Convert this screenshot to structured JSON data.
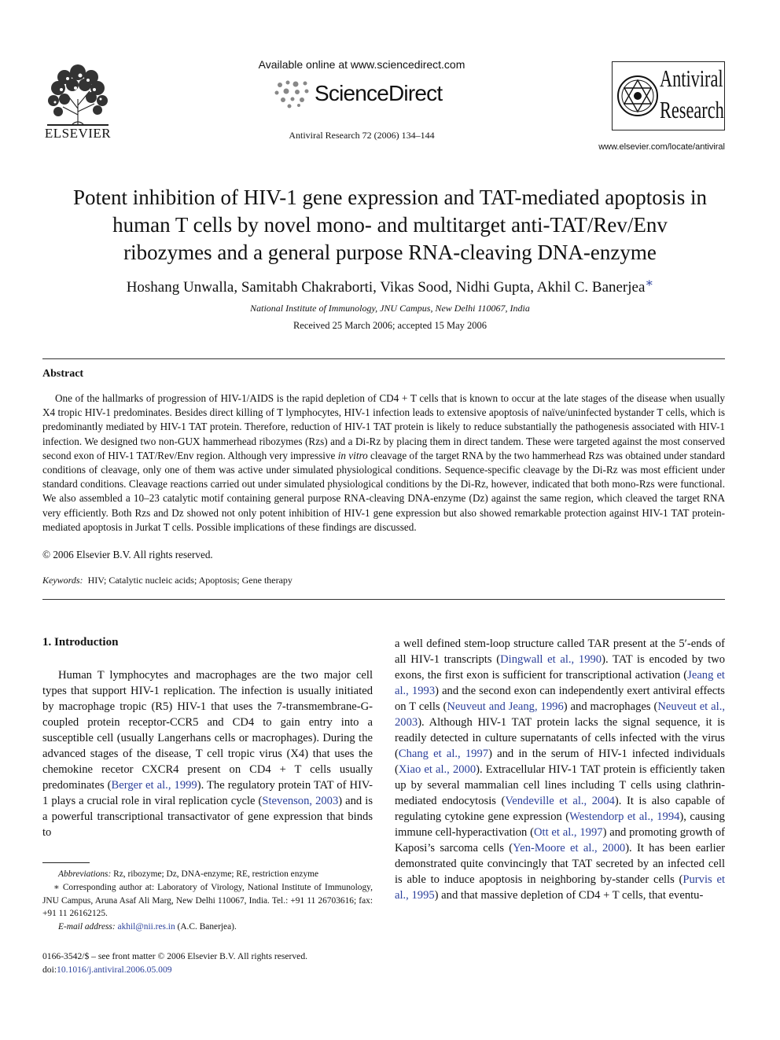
{
  "header": {
    "publisher": "ELSEVIER",
    "available_online": "Available online at www.sciencedirect.com",
    "sciencedirect": "ScienceDirect",
    "journal_ref": "Antiviral Research 72 (2006) 134–144",
    "journal_name_line1": "Antiviral",
    "journal_name_line2": "Research",
    "journal_url": "www.elsevier.com/locate/antiviral"
  },
  "article": {
    "title_lines": [
      "Potent inhibition of HIV-1 gene expression and TAT-mediated apoptosis in",
      "human T cells by novel mono- and multitarget anti-TAT/Rev/Env",
      "ribozymes and a general purpose RNA-cleaving DNA-enzyme"
    ],
    "authors": "Hoshang Unwalla, Samitabh Chakraborti, Vikas Sood, Nidhi Gupta, Akhil C. Banerjea",
    "author_mark": "∗",
    "affiliation": "National Institute of Immunology, JNU Campus, New Delhi 110067, India",
    "received": "Received 25 March 2006; accepted 15 May 2006"
  },
  "abstract": {
    "heading": "Abstract",
    "part1": "One of the hallmarks of progression of HIV-1/AIDS is the rapid depletion of CD4 + T cells that is known to occur at the late stages of the disease when usually X4 tropic HIV-1 predominates. Besides direct killing of T lymphocytes, HIV-1 infection leads to extensive apoptosis of naïve/uninfected bystander T cells, which is predominantly mediated by HIV-1 TAT protein. Therefore, reduction of HIV-1 TAT protein is likely to reduce substantially the pathogenesis associated with HIV-1 infection. We designed two non-GUX hammerhead ribozymes (Rzs) and a Di-Rz by placing them in direct tandem. These were targeted against the most conserved second exon of HIV-1 TAT/Rev/Env region. Although very impressive ",
    "italic": "in vitro",
    "part2": " cleavage of the target RNA by the two hammerhead Rzs was obtained under standard conditions of cleavage, only one of them was active under simulated physiological conditions. Sequence-specific cleavage by the Di-Rz was most efficient under standard conditions. Cleavage reactions carried out under simulated physiological conditions by the Di-Rz, however, indicated that both mono-Rzs were functional. We also assembled a 10–23 catalytic motif containing general purpose RNA-cleaving DNA-enzyme (Dz) against the same region, which cleaved the target RNA very efficiently. Both Rzs and Dz showed not only potent inhibition of HIV-1 gene expression but also showed remarkable protection against HIV-1 TAT protein-mediated apoptosis in Jurkat T cells. Possible implications of these findings are discussed.",
    "copyright": "© 2006 Elsevier B.V. All rights reserved."
  },
  "keywords": {
    "label": "Keywords:",
    "values": "HIV; Catalytic nucleic acids; Apoptosis; Gene therapy"
  },
  "intro": {
    "heading": "1.  Introduction",
    "left": [
      {
        "t": "Human T lymphocytes and macrophages are the two major cell types that support HIV-1 replication. The infection is usually initiated by macrophage tropic (R5) HIV-1 that uses the 7-transmembrane-G-coupled protein receptor-CCR5 and CD4 to gain entry into a susceptible cell (usually Langerhans cells or macrophages). During the advanced stages of the disease, T cell tropic virus (X4) that uses the chemokine recetor CXCR4 present on CD4 + T cells usually predominates ("
      },
      {
        "t": "Berger et al., 1999",
        "link": true
      },
      {
        "t": "). The regulatory protein TAT of HIV-1 plays a crucial role in viral replication cycle ("
      },
      {
        "t": "Stevenson, 2003",
        "link": true
      },
      {
        "t": ") and is a powerful transcriptional transactivator of gene expression that binds to"
      }
    ],
    "right": [
      {
        "t": "a well defined stem-loop structure called TAR present at the 5′-ends of all HIV-1 transcripts ("
      },
      {
        "t": "Dingwall et al., 1990",
        "link": true
      },
      {
        "t": "). TAT is encoded by two exons, the first exon is sufficient for transcriptional activation ("
      },
      {
        "t": "Jeang et al., 1993",
        "link": true
      },
      {
        "t": ") and the second exon can independently exert antiviral effects on T cells ("
      },
      {
        "t": "Neuveut and Jeang, 1996",
        "link": true
      },
      {
        "t": ") and macrophages ("
      },
      {
        "t": "Neuveut et al., 2003",
        "link": true
      },
      {
        "t": "). Although HIV-1 TAT protein lacks the signal sequence, it is readily detected in culture supernatants of cells infected with the virus ("
      },
      {
        "t": "Chang et al., 1997",
        "link": true
      },
      {
        "t": ") and in the serum of HIV-1 infected individuals ("
      },
      {
        "t": "Xiao et al., 2000",
        "link": true
      },
      {
        "t": "). Extracellular HIV-1 TAT protein is efficiently taken up by several mammalian cell lines including T cells using clathrin-mediated endocytosis ("
      },
      {
        "t": "Vendeville et al., 2004",
        "link": true
      },
      {
        "t": "). It is also capable of regulating cytokine gene expression ("
      },
      {
        "t": "Westendorp et al., 1994",
        "link": true
      },
      {
        "t": "), causing immune cell-hyperactivation ("
      },
      {
        "t": "Ott et al., 1997",
        "link": true
      },
      {
        "t": ") and promoting growth of Kaposi’s sarcoma cells ("
      },
      {
        "t": "Yen-Moore et al., 2000",
        "link": true
      },
      {
        "t": "). It has been earlier demonstrated quite convincingly that TAT secreted by an infected cell is able to induce apoptosis in neighboring by-stander cells ("
      },
      {
        "t": "Purvis et al., 1995",
        "link": true
      },
      {
        "t": ") and that massive depletion of CD4 + T cells, that eventu-"
      }
    ]
  },
  "footnotes": {
    "abbr_label": "Abbreviations:",
    "abbr_text": "Rz, ribozyme; Dz, DNA-enzyme; RE, restriction enzyme",
    "corr_mark": "∗",
    "corr_text": "Corresponding author at: Laboratory of Virology, National Institute of Immunology, JNU Campus, Aruna Asaf Ali Marg, New Delhi 110067, India. Tel.: +91 11 26703616; fax: +91 11 26162125.",
    "email_label": "E-mail address:",
    "email": "akhil@nii.res.in",
    "email_suffix": "(A.C. Banerjea)."
  },
  "front_matter": {
    "issn_line": "0166-3542/$ – see front matter © 2006 Elsevier B.V. All rights reserved.",
    "doi_label": "doi:",
    "doi": "10.1016/j.antiviral.2006.05.009"
  }
}
